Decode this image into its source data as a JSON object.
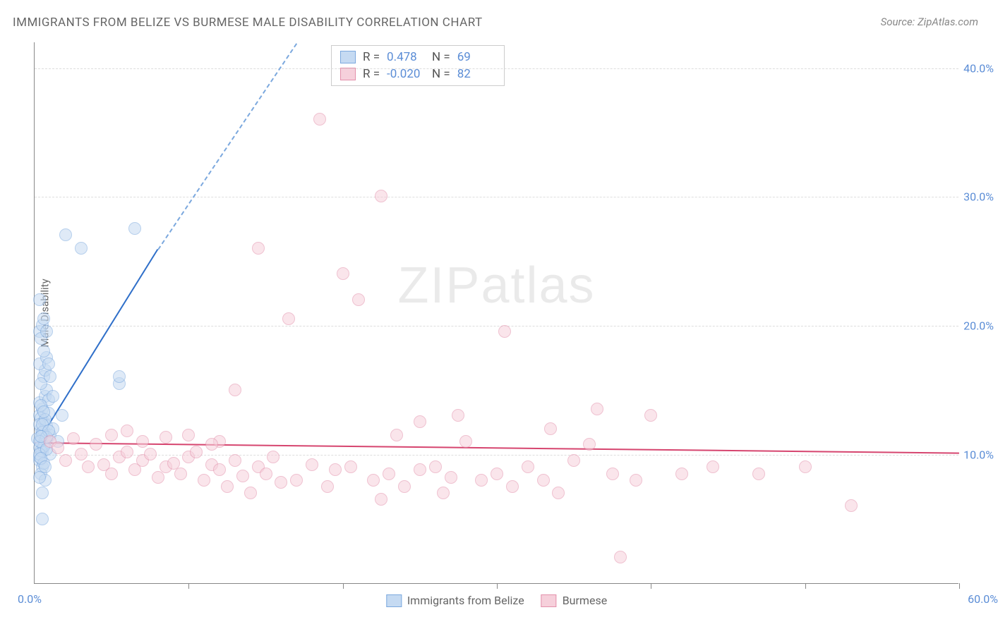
{
  "title": "IMMIGRANTS FROM BELIZE VS BURMESE MALE DISABILITY CORRELATION CHART",
  "source": "Source: ZipAtlas.com",
  "watermark_zip": "ZIP",
  "watermark_atlas": "atlas",
  "ylabel": "Male Disability",
  "chart": {
    "type": "scatter",
    "xlim": [
      0,
      60
    ],
    "ylim": [
      0,
      42
    ],
    "x_ticks": [
      0,
      10,
      20,
      30,
      40,
      50,
      60
    ],
    "y_gridlines": [
      10,
      20,
      30,
      40
    ],
    "x_label_min": "0.0%",
    "x_label_max": "60.0%",
    "y_tick_labels": {
      "10": "10.0%",
      "20": "20.0%",
      "30": "30.0%",
      "40": "40.0%"
    },
    "background_color": "#ffffff",
    "grid_color": "#dddddd",
    "axis_color": "#888888",
    "tick_label_color": "#5b8dd6",
    "marker_radius": 9,
    "marker_stroke_width": 1.5,
    "trend_line_width": 2
  },
  "series": [
    {
      "name": "Immigrants from Belize",
      "fill_color": "#c5daf2",
      "stroke_color": "#7ba8de",
      "fill_opacity": 0.55,
      "R_label": "R =",
      "R": "0.478",
      "N_label": "N =",
      "N": "69",
      "trend": {
        "solid": {
          "x1": 0.2,
          "y1": 11,
          "x2": 8,
          "y2": 26,
          "color": "#2f6fc9"
        },
        "dashed": {
          "x1": 8,
          "y1": 26,
          "x2": 17,
          "y2": 42,
          "color": "#7ba8de"
        }
      },
      "points": [
        [
          0.2,
          11.2
        ],
        [
          0.3,
          10.5
        ],
        [
          0.4,
          12.0
        ],
        [
          0.5,
          11.5
        ],
        [
          0.3,
          13.0
        ],
        [
          0.6,
          12.5
        ],
        [
          0.4,
          11.0
        ],
        [
          0.7,
          10.8
        ],
        [
          0.5,
          13.5
        ],
        [
          0.8,
          12.2
        ],
        [
          0.3,
          14.0
        ],
        [
          0.6,
          11.8
        ],
        [
          0.9,
          13.2
        ],
        [
          0.4,
          12.8
        ],
        [
          0.7,
          14.5
        ],
        [
          0.5,
          10.2
        ],
        [
          1.0,
          11.5
        ],
        [
          0.8,
          15.0
        ],
        [
          0.3,
          9.5
        ],
        [
          0.6,
          16.0
        ],
        [
          1.2,
          12.0
        ],
        [
          0.4,
          15.5
        ],
        [
          0.9,
          14.2
        ],
        [
          0.5,
          9.0
        ],
        [
          1.5,
          11.0
        ],
        [
          0.7,
          16.5
        ],
        [
          0.3,
          17.0
        ],
        [
          1.0,
          10.0
        ],
        [
          0.8,
          17.5
        ],
        [
          0.4,
          8.5
        ],
        [
          1.8,
          13.0
        ],
        [
          0.6,
          18.0
        ],
        [
          0.3,
          19.5
        ],
        [
          0.9,
          17.0
        ],
        [
          0.5,
          20.0
        ],
        [
          1.2,
          14.5
        ],
        [
          0.7,
          8.0
        ],
        [
          0.4,
          19.0
        ],
        [
          0.3,
          22.0
        ],
        [
          0.8,
          19.5
        ],
        [
          0.5,
          7.0
        ],
        [
          0.6,
          20.5
        ],
        [
          0.3,
          9.8
        ],
        [
          1.0,
          16.0
        ],
        [
          0.4,
          10.3
        ],
        [
          0.7,
          11.2
        ],
        [
          0.3,
          12.3
        ],
        [
          0.5,
          11.7
        ],
        [
          0.6,
          10.6
        ],
        [
          0.8,
          11.3
        ],
        [
          0.4,
          13.8
        ],
        [
          0.3,
          11.0
        ],
        [
          0.7,
          12.7
        ],
        [
          0.5,
          12.3
        ],
        [
          0.9,
          11.8
        ],
        [
          0.3,
          10.0
        ],
        [
          0.6,
          13.3
        ],
        [
          0.4,
          11.4
        ],
        [
          0.8,
          10.4
        ],
        [
          0.5,
          5.0
        ],
        [
          2.0,
          27.0
        ],
        [
          3.0,
          26.0
        ],
        [
          6.5,
          27.5
        ],
        [
          5.5,
          15.5
        ],
        [
          5.5,
          16.0
        ],
        [
          0.3,
          8.2
        ],
        [
          0.6,
          9.3
        ],
        [
          0.4,
          9.7
        ],
        [
          0.7,
          9.0
        ]
      ]
    },
    {
      "name": "Burmese",
      "fill_color": "#f6d0db",
      "stroke_color": "#e390ab",
      "fill_opacity": 0.55,
      "R_label": "R =",
      "R": "-0.020",
      "N_label": "N =",
      "N": "82",
      "trend": {
        "solid": {
          "x1": 0,
          "y1": 11,
          "x2": 60,
          "y2": 10.2,
          "color": "#d6456f"
        }
      },
      "points": [
        [
          1.0,
          11.0
        ],
        [
          1.5,
          10.5
        ],
        [
          2.0,
          9.5
        ],
        [
          2.5,
          11.2
        ],
        [
          3.0,
          10.0
        ],
        [
          3.5,
          9.0
        ],
        [
          4.0,
          10.8
        ],
        [
          4.5,
          9.2
        ],
        [
          5.0,
          8.5
        ],
        [
          5.5,
          9.8
        ],
        [
          6.0,
          10.2
        ],
        [
          6.5,
          8.8
        ],
        [
          7.0,
          9.5
        ],
        [
          7.5,
          10.0
        ],
        [
          8.0,
          8.2
        ],
        [
          8.5,
          9.0
        ],
        [
          9.0,
          9.3
        ],
        [
          9.5,
          8.5
        ],
        [
          10.0,
          9.8
        ],
        [
          10.5,
          10.2
        ],
        [
          11.0,
          8.0
        ],
        [
          11.5,
          9.2
        ],
        [
          12.0,
          8.8
        ],
        [
          12.5,
          7.5
        ],
        [
          13.0,
          9.5
        ],
        [
          13.5,
          8.3
        ],
        [
          14.0,
          7.0
        ],
        [
          14.5,
          9.0
        ],
        [
          15.0,
          8.5
        ],
        [
          15.5,
          9.8
        ],
        [
          16.0,
          7.8
        ],
        [
          13.0,
          15.0
        ],
        [
          17.0,
          8.0
        ],
        [
          18.0,
          9.2
        ],
        [
          16.5,
          20.5
        ],
        [
          18.5,
          36.0
        ],
        [
          19.0,
          7.5
        ],
        [
          19.5,
          8.8
        ],
        [
          20.0,
          24.0
        ],
        [
          20.5,
          9.0
        ],
        [
          21.0,
          22.0
        ],
        [
          22.0,
          8.0
        ],
        [
          22.5,
          6.5
        ],
        [
          23.0,
          8.5
        ],
        [
          23.5,
          11.5
        ],
        [
          24.0,
          7.5
        ],
        [
          22.5,
          30.0
        ],
        [
          25.0,
          8.8
        ],
        [
          25.0,
          12.5
        ],
        [
          26.0,
          9.0
        ],
        [
          26.5,
          7.0
        ],
        [
          27.0,
          8.2
        ],
        [
          27.5,
          13.0
        ],
        [
          28.0,
          11.0
        ],
        [
          29.0,
          8.0
        ],
        [
          30.0,
          8.5
        ],
        [
          30.5,
          19.5
        ],
        [
          31.0,
          7.5
        ],
        [
          32.0,
          9.0
        ],
        [
          33.0,
          8.0
        ],
        [
          33.5,
          12.0
        ],
        [
          34.0,
          7.0
        ],
        [
          35.0,
          9.5
        ],
        [
          36.0,
          10.8
        ],
        [
          36.5,
          13.5
        ],
        [
          37.5,
          8.5
        ],
        [
          38.0,
          2.0
        ],
        [
          39.0,
          8.0
        ],
        [
          40.0,
          13.0
        ],
        [
          42.0,
          8.5
        ],
        [
          44.0,
          9.0
        ],
        [
          47.0,
          8.5
        ],
        [
          50.0,
          9.0
        ],
        [
          53.0,
          6.0
        ],
        [
          5.0,
          11.5
        ],
        [
          7.0,
          11.0
        ],
        [
          12.0,
          11.0
        ],
        [
          14.5,
          26.0
        ],
        [
          11.5,
          10.8
        ],
        [
          10.0,
          11.5
        ],
        [
          8.5,
          11.3
        ],
        [
          6.0,
          11.8
        ]
      ]
    }
  ],
  "bottom_legend": [
    {
      "label": "Immigrants from Belize",
      "fill": "#c5daf2",
      "stroke": "#7ba8de"
    },
    {
      "label": "Burmese",
      "fill": "#f6d0db",
      "stroke": "#e390ab"
    }
  ]
}
